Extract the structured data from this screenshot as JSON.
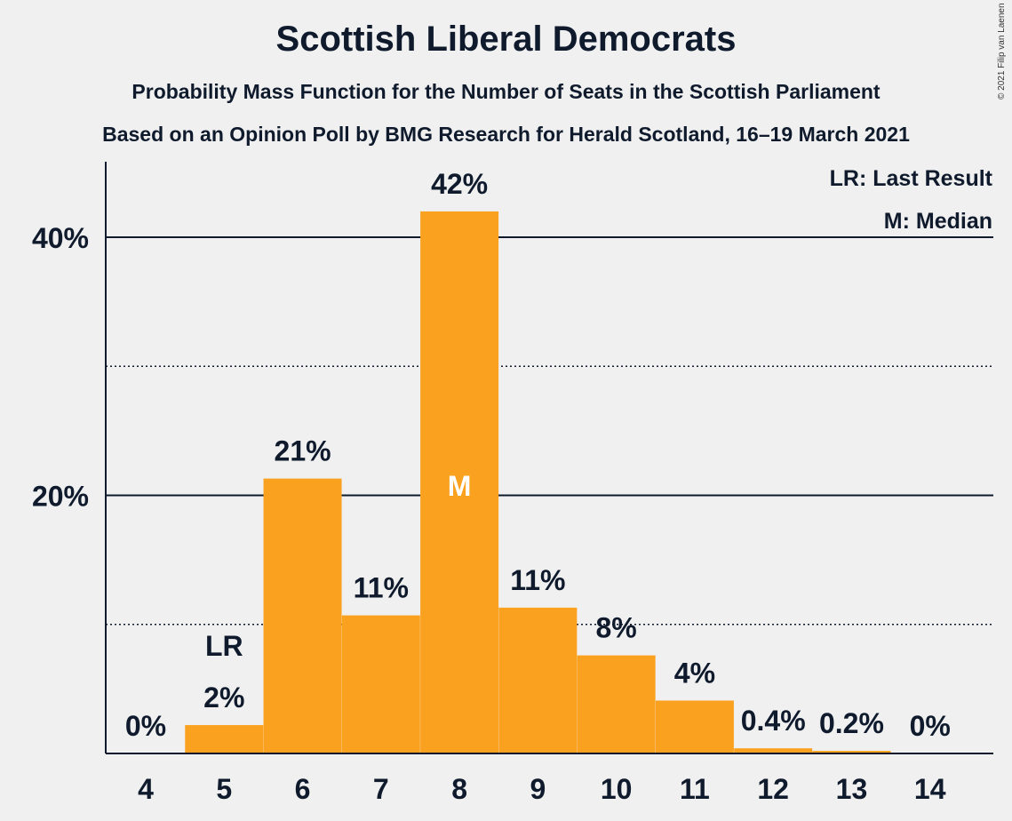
{
  "chart_data": {
    "type": "bar",
    "title": "Scottish Liberal Democrats",
    "subtitles": [
      "Probability Mass Function for the Number of Seats in the Scottish Parliament",
      "Based on an Opinion Poll by BMG Research for Herald Scotland, 16–19 March 2021"
    ],
    "categories": [
      "4",
      "5",
      "6",
      "7",
      "8",
      "9",
      "10",
      "11",
      "12",
      "13",
      "14"
    ],
    "values": [
      0,
      2.2,
      21.3,
      10.7,
      42,
      11.3,
      7.6,
      4.1,
      0.4,
      0.2,
      0
    ],
    "data_labels": [
      "0%",
      "2%",
      "21%",
      "11%",
      "42%",
      "11%",
      "8%",
      "4%",
      "0.4%",
      "0.2%",
      "0%"
    ],
    "ylim": [
      0,
      45
    ],
    "yticks": [
      {
        "value": 20,
        "label": "20%"
      },
      {
        "value": 40,
        "label": "40%"
      }
    ],
    "minor_gridlines": [
      10,
      30
    ],
    "last_result": {
      "category": "5",
      "label": "LR"
    },
    "median": {
      "category": "8",
      "label": "M"
    },
    "legend": [
      "LR: Last Result",
      "M: Median"
    ],
    "legend_position": "top-right",
    "bar_color": "#faa21f",
    "axis_color": "#0f1b2d",
    "copyright": "© 2021 Filip van Laenen"
  }
}
